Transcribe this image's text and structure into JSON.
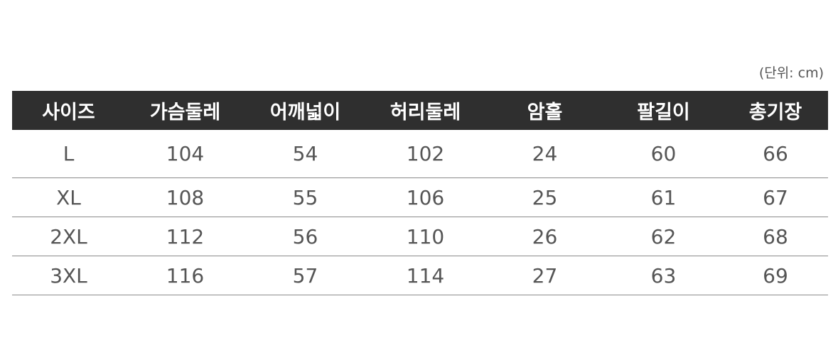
{
  "unit_label": "(단위: cm)",
  "headers": [
    "사이즈",
    "가슴둘레",
    "어깨넓이",
    "허리둘레",
    "암홀",
    "팔길이",
    "총기장"
  ],
  "rows": [
    [
      "L",
      "104",
      "54",
      "102",
      "24",
      "60",
      "66"
    ],
    [
      "XL",
      "108",
      "55",
      "106",
      "25",
      "61",
      "67"
    ],
    [
      "2XL",
      "112",
      "56",
      "110",
      "26",
      "62",
      "68"
    ],
    [
      "3XL",
      "116",
      "57",
      "114",
      "27",
      "63",
      "69"
    ]
  ],
  "colors": {
    "header_bg": "#2f2f2f",
    "header_text": "#ffffff",
    "cell_text": "#555555"
  }
}
